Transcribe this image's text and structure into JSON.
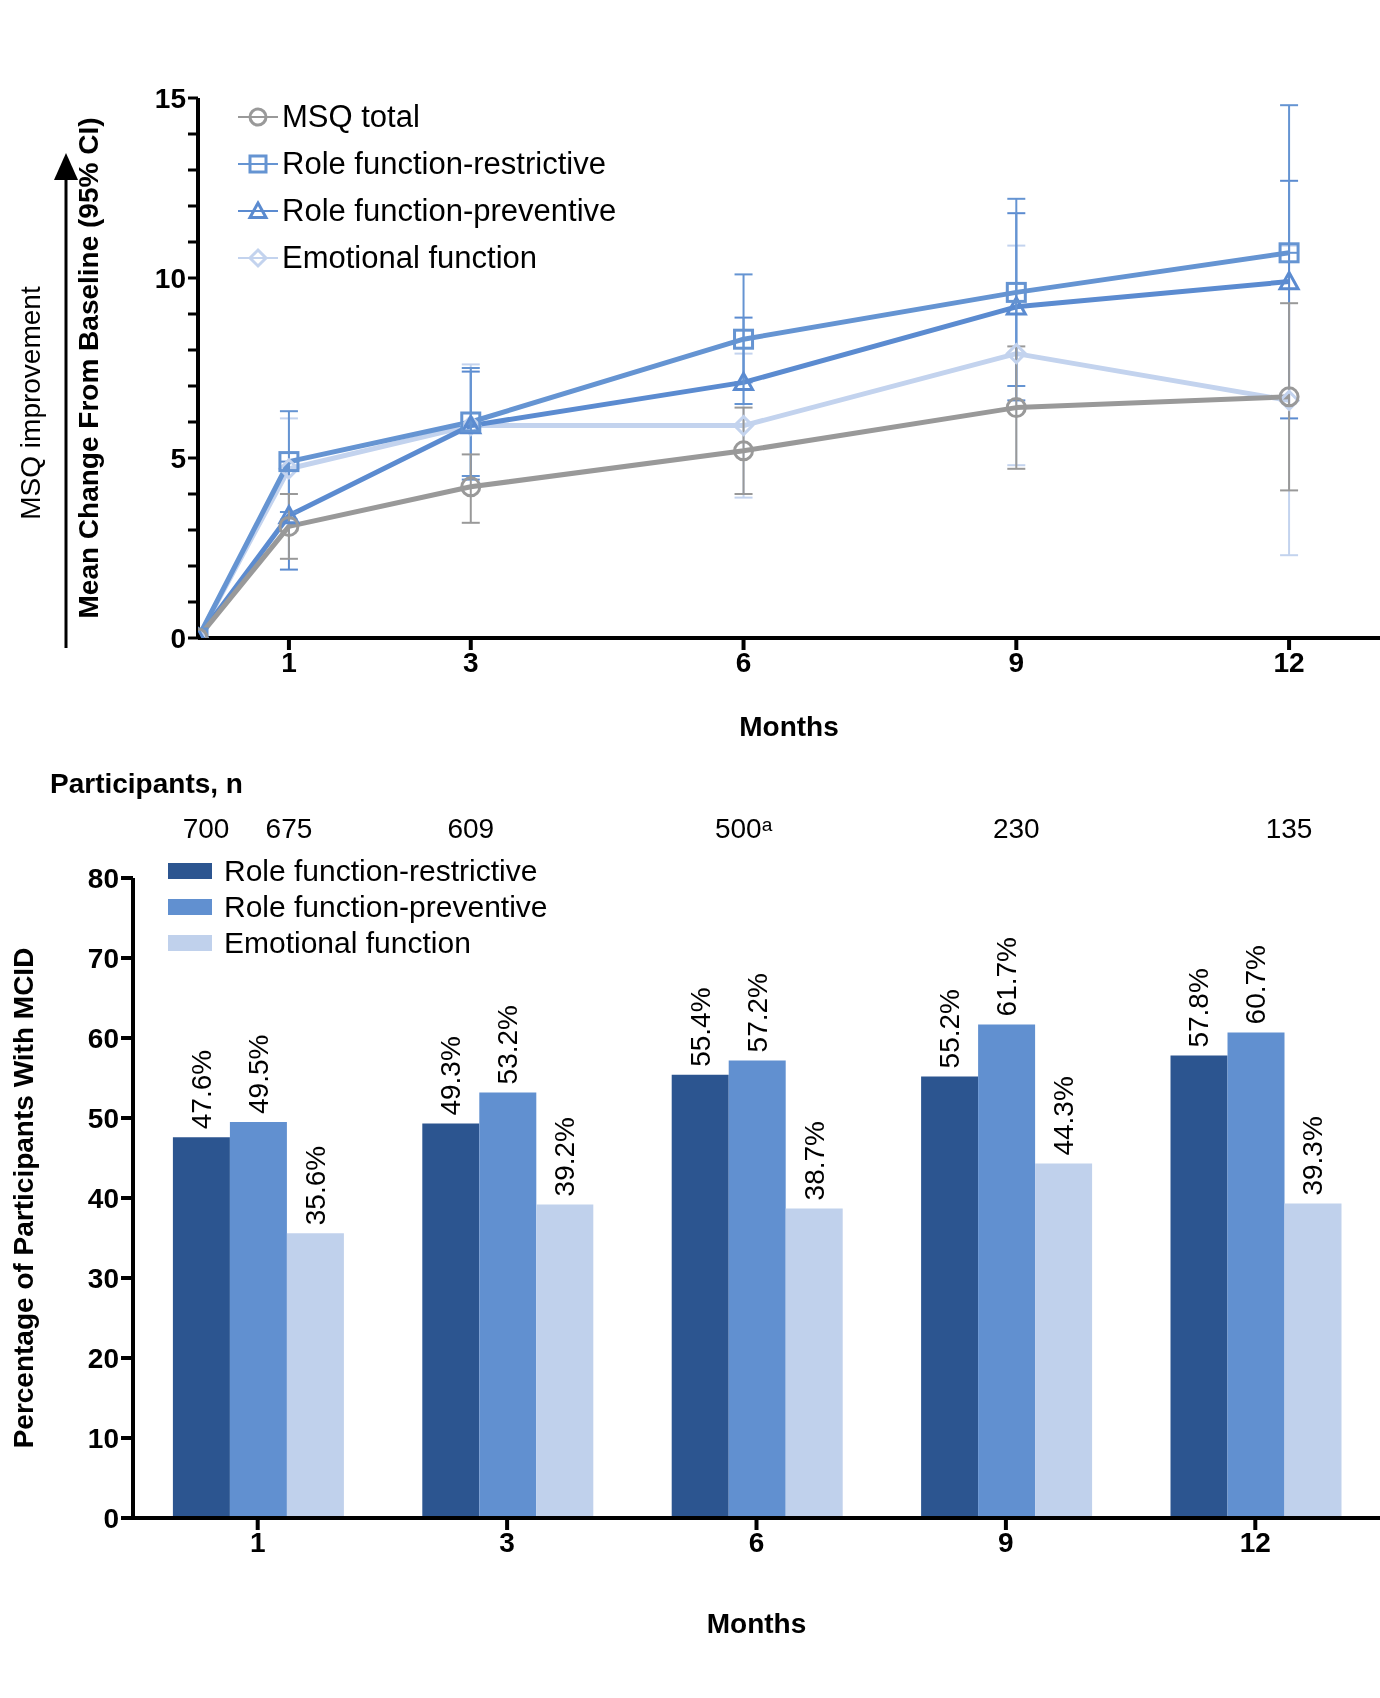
{
  "chart_data": [
    {
      "type": "line",
      "x": [
        0,
        1,
        3,
        6,
        9,
        12
      ],
      "xlim": [
        0,
        13
      ],
      "xticks": [
        1,
        3,
        6,
        9,
        12
      ],
      "ylim": [
        0,
        15
      ],
      "yticks": [
        0,
        {
          "value": 1,
          "label": null
        },
        {
          "value": 2,
          "label": null
        },
        {
          "value": 3,
          "label": null
        },
        {
          "value": 4,
          "label": null
        },
        5,
        {
          "value": 6,
          "label": null
        },
        {
          "value": 7,
          "label": null
        },
        {
          "value": 8,
          "label": null
        },
        {
          "value": 9,
          "label": null
        },
        10,
        {
          "value": 11,
          "label": null
        },
        {
          "value": 12,
          "label": null
        },
        {
          "value": 13,
          "label": null
        },
        {
          "value": 14,
          "label": null
        },
        15
      ],
      "xlabel": "Months",
      "ylabel": "Mean Change From Baseline (95% CI)",
      "legend": "top left",
      "annotations": [
        "MSQ improvement",
        "Participants, n",
        "700",
        "675",
        "609",
        "500ᵃ",
        "230",
        "135"
      ],
      "series": [
        {
          "name": "MSQ total",
          "color": "#999999",
          "marker": "circle",
          "values": [
            0,
            3.1,
            4.2,
            5.2,
            6.4,
            6.7
          ],
          "errors": [
            null,
            [
              2.2,
              4.0
            ],
            [
              3.2,
              5.1
            ],
            [
              4.0,
              6.4
            ],
            [
              4.7,
              8.1
            ],
            [
              4.1,
              9.3
            ]
          ]
        },
        {
          "name": "Role function-restrictive",
          "color": "#6594d2",
          "marker": "square",
          "values": [
            0,
            4.9,
            6.0,
            8.3,
            9.6,
            10.7
          ],
          "errors": [
            null,
            [
              3.5,
              6.3
            ],
            [
              4.5,
              7.5
            ],
            [
              6.5,
              10.1
            ],
            [
              7.0,
              12.2
            ],
            [
              10.7,
              14.8
            ]
          ]
        },
        {
          "name": "Role function-preventive",
          "color": "#5b8bd0",
          "marker": "triangle",
          "values": [
            0,
            3.4,
            5.9,
            7.1,
            9.2,
            9.9
          ],
          "errors": [
            null,
            [
              1.9,
              4.9
            ],
            [
              4.4,
              7.4
            ],
            [
              7.1,
              8.9
            ],
            [
              6.6,
              11.8
            ],
            [
              6.1,
              12.7
            ]
          ]
        },
        {
          "name": "Emotional function",
          "color": "#c3d3ee",
          "marker": "diamond",
          "values": [
            0,
            4.7,
            5.9,
            5.9,
            7.9,
            6.6
          ],
          "errors": [
            null,
            [
              3.3,
              6.1
            ],
            [
              5.9,
              7.6
            ],
            [
              3.9,
              7.9
            ],
            [
              4.8,
              10.9
            ],
            [
              2.3,
              10.9
            ]
          ]
        }
      ]
    },
    {
      "type": "bar",
      "categories": [
        "1",
        "3",
        "6",
        "9",
        "12"
      ],
      "ylim": [
        0,
        80
      ],
      "yticks": [
        0,
        10,
        20,
        30,
        40,
        50,
        60,
        70,
        80
      ],
      "xlabel": "Months",
      "ylabel": "Percentage of Participants With MCID",
      "legend": "top left",
      "series": [
        {
          "name": "Role function-restrictive",
          "color": "#2c5590",
          "values": [
            47.6,
            49.3,
            55.4,
            55.2,
            57.8
          ],
          "value_labels": [
            "47.6%",
            "49.3%",
            "55.4%",
            "55.2%",
            "57.8%"
          ]
        },
        {
          "name": "Role function-preventive",
          "color": "#6190d0",
          "values": [
            49.5,
            53.2,
            57.2,
            61.7,
            60.7
          ],
          "value_labels": [
            "49.5%",
            "53.2%",
            "57.2%",
            "61.7%",
            "60.7%"
          ]
        },
        {
          "name": "Emotional function",
          "color": "#c0d1ec",
          "values": [
            35.6,
            39.2,
            38.7,
            44.3,
            39.3
          ],
          "value_labels": [
            "35.6%",
            "39.2%",
            "38.7%",
            "44.3%",
            "39.3%"
          ]
        }
      ]
    }
  ]
}
